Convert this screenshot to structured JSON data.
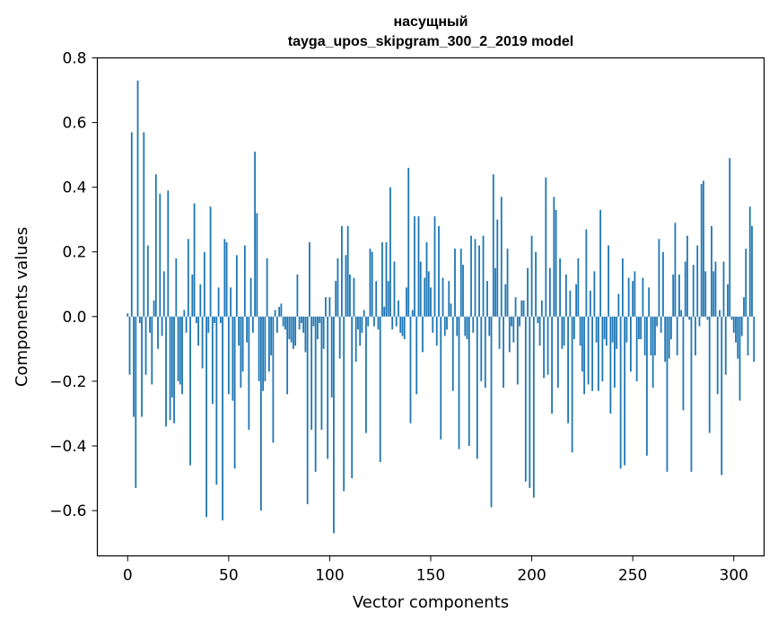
{
  "chart_data": {
    "type": "bar",
    "title": [
      "насущный",
      "tayga_upos_skipgram_300_2_2019 model"
    ],
    "xlabel": "Vector components",
    "ylabel": "Components values",
    "xlim": [
      -15,
      315
    ],
    "ylim": [
      -0.74,
      0.8
    ],
    "xticks": [
      0,
      50,
      100,
      150,
      200,
      250,
      300
    ],
    "xtick_labels": [
      "0",
      "50",
      "100",
      "150",
      "200",
      "250",
      "300"
    ],
    "yticks": [
      0.8,
      0.6,
      0.4,
      0.2,
      0.0,
      -0.2,
      -0.4,
      -0.6
    ],
    "ytick_labels": [
      "0.8",
      "0.6",
      "0.4",
      "0.2",
      "0.0",
      "−0.2",
      "−0.4",
      "−0.6"
    ],
    "bar_color": "#1f77b4",
    "grid": false,
    "legend": "none",
    "series": [
      {
        "values": [
          0.01,
          -0.18,
          0.57,
          -0.31,
          -0.53,
          0.73,
          -0.02,
          -0.31,
          0.57,
          -0.18,
          0.22,
          -0.05,
          -0.21,
          0.05,
          0.44,
          -0.1,
          0.38,
          -0.06,
          0.14,
          -0.34,
          0.39,
          -0.32,
          -0.25,
          -0.33,
          0.18,
          -0.2,
          -0.21,
          -0.24,
          0.02,
          -0.05,
          0.24,
          -0.46,
          0.13,
          0.35,
          -0.02,
          -0.09,
          0.1,
          -0.16,
          0.2,
          -0.62,
          -0.05,
          0.34,
          -0.27,
          -0.02,
          -0.52,
          0.09,
          -0.02,
          -0.63,
          0.24,
          0.23,
          -0.24,
          0.09,
          -0.26,
          -0.47,
          0.19,
          -0.09,
          -0.22,
          -0.17,
          0.22,
          -0.08,
          -0.35,
          0.12,
          -0.05,
          0.51,
          0.32,
          -0.2,
          -0.6,
          -0.23,
          -0.2,
          0.18,
          -0.17,
          -0.12,
          -0.39,
          0.02,
          -0.05,
          0.03,
          0.04,
          -0.03,
          -0.04,
          -0.24,
          -0.07,
          -0.08,
          -0.1,
          -0.09,
          0.13,
          -0.04,
          -0.02,
          -0.05,
          -0.11,
          -0.58,
          0.23,
          -0.35,
          -0.03,
          -0.48,
          -0.07,
          -0.02,
          -0.35,
          -0.1,
          0.06,
          -0.44,
          0.06,
          -0.25,
          -0.67,
          0.11,
          0.18,
          -0.13,
          0.28,
          -0.54,
          0.19,
          0.28,
          0.13,
          -0.5,
          0.12,
          -0.14,
          -0.04,
          -0.09,
          -0.05,
          0.02,
          -0.36,
          -0.03,
          0.21,
          0.2,
          -0.03,
          0.11,
          -0.04,
          -0.45,
          0.23,
          0.03,
          0.23,
          0.11,
          0.4,
          -0.04,
          0.17,
          -0.03,
          0.05,
          -0.05,
          -0.06,
          -0.07,
          0.09,
          0.46,
          -0.33,
          0.02,
          0.31,
          -0.24,
          0.31,
          0.17,
          -0.11,
          0.12,
          0.23,
          0.14,
          0.09,
          -0.05,
          0.31,
          -0.09,
          0.28,
          -0.38,
          0.12,
          -0.06,
          -0.04,
          0.11,
          0.04,
          -0.23,
          0.21,
          -0.06,
          -0.41,
          0.21,
          0.16,
          -0.06,
          -0.07,
          -0.4,
          0.25,
          -0.05,
          0.24,
          -0.44,
          0.22,
          -0.2,
          0.25,
          -0.22,
          0.11,
          -0.06,
          -0.59,
          0.44,
          0.15,
          0.3,
          -0.1,
          0.37,
          -0.22,
          0.1,
          0.21,
          -0.11,
          -0.03,
          -0.08,
          0.06,
          -0.21,
          -0.03,
          0.05,
          0.05,
          -0.51,
          0.15,
          -0.53,
          0.25,
          -0.56,
          0.2,
          -0.02,
          -0.09,
          0.05,
          -0.19,
          0.43,
          -0.18,
          0.15,
          -0.3,
          0.37,
          0.33,
          -0.22,
          0.18,
          -0.1,
          -0.09,
          0.13,
          -0.33,
          0.08,
          -0.42,
          -0.07,
          0.1,
          0.18,
          -0.09,
          -0.17,
          -0.24,
          0.27,
          -0.21,
          0.08,
          -0.23,
          0.14,
          -0.08,
          -0.23,
          0.33,
          -0.2,
          -0.07,
          -0.09,
          0.22,
          -0.3,
          -0.08,
          -0.22,
          -0.1,
          0.07,
          -0.47,
          0.18,
          -0.46,
          -0.08,
          0.12,
          -0.17,
          0.11,
          0.14,
          -0.2,
          -0.07,
          -0.07,
          0.12,
          -0.12,
          -0.43,
          0.09,
          -0.12,
          -0.22,
          -0.12,
          -0.03,
          0.24,
          -0.05,
          0.2,
          -0.14,
          -0.48,
          -0.13,
          -0.07,
          0.13,
          0.29,
          -0.12,
          0.13,
          0.02,
          -0.29,
          0.17,
          0.25,
          -0.01,
          -0.48,
          0.16,
          -0.12,
          0.22,
          -0.03,
          0.41,
          0.42,
          0.14,
          -0.01,
          -0.36,
          0.28,
          0.14,
          0.17,
          -0.24,
          0.02,
          -0.49,
          0.17,
          -0.18,
          0.1,
          0.49,
          -0.01,
          -0.05,
          -0.08,
          -0.13,
          -0.26,
          -0.06,
          0.06,
          0.21,
          -0.12,
          0.34,
          0.28,
          -0.14
        ]
      }
    ]
  }
}
